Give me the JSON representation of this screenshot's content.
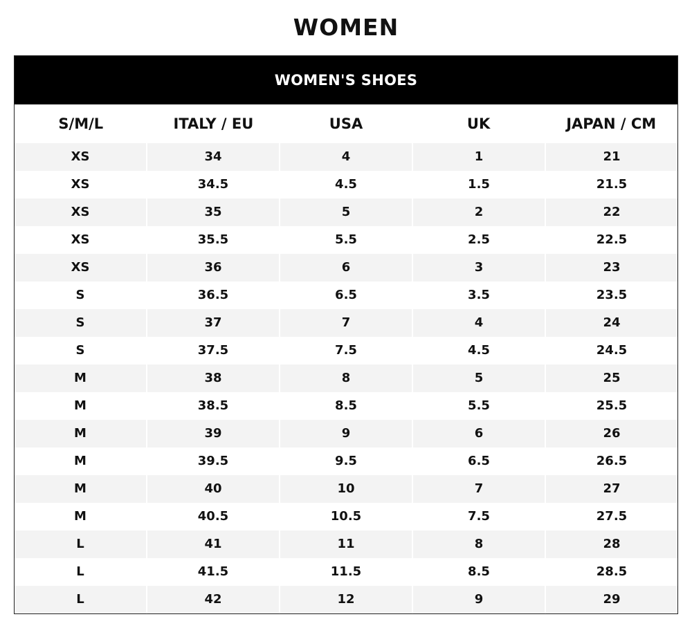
{
  "title": "WOMEN",
  "table": {
    "banner": "WOMEN'S SHOES",
    "columns": [
      "S/M/L",
      "ITALY / EU",
      "USA",
      "UK",
      "JAPAN / CM"
    ],
    "rows": [
      [
        "XS",
        "34",
        "4",
        "1",
        "21"
      ],
      [
        "XS",
        "34.5",
        "4.5",
        "1.5",
        "21.5"
      ],
      [
        "XS",
        "35",
        "5",
        "2",
        "22"
      ],
      [
        "XS",
        "35.5",
        "5.5",
        "2.5",
        "22.5"
      ],
      [
        "XS",
        "36",
        "6",
        "3",
        "23"
      ],
      [
        "S",
        "36.5",
        "6.5",
        "3.5",
        "23.5"
      ],
      [
        "S",
        "37",
        "7",
        "4",
        "24"
      ],
      [
        "S",
        "37.5",
        "7.5",
        "4.5",
        "24.5"
      ],
      [
        "M",
        "38",
        "8",
        "5",
        "25"
      ],
      [
        "M",
        "38.5",
        "8.5",
        "5.5",
        "25.5"
      ],
      [
        "M",
        "39",
        "9",
        "6",
        "26"
      ],
      [
        "M",
        "39.5",
        "9.5",
        "6.5",
        "26.5"
      ],
      [
        "M",
        "40",
        "10",
        "7",
        "27"
      ],
      [
        "M",
        "40.5",
        "10.5",
        "7.5",
        "27.5"
      ],
      [
        "L",
        "41",
        "11",
        "8",
        "28"
      ],
      [
        "L",
        "41.5",
        "11.5",
        "8.5",
        "28.5"
      ],
      [
        "L",
        "42",
        "12",
        "9",
        "29"
      ]
    ]
  },
  "colors": {
    "banner_bg": "#000000",
    "banner_text": "#ffffff",
    "shaded_row": "#f3f3f3",
    "text": "#111111"
  }
}
